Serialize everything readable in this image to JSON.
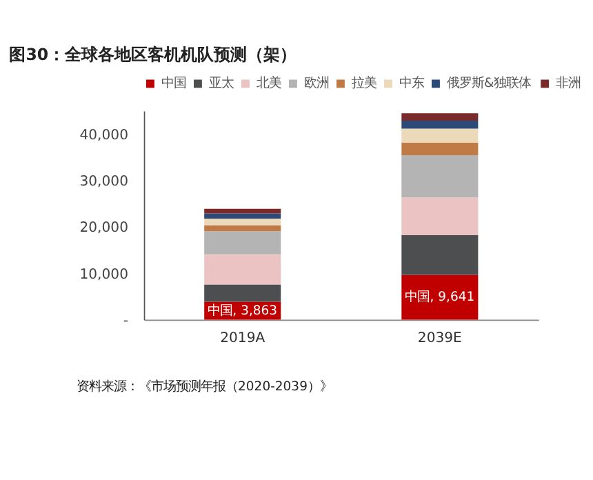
{
  "chart_data": {
    "type": "bar",
    "title": "图30：全球各地区客机机队预测（架）",
    "stacked": true,
    "categories": [
      "2019A",
      "2039E"
    ],
    "series": [
      {
        "name": "中国",
        "color": "#c00000",
        "values": [
          3863,
          9641
        ],
        "value_labels": [
          "中国, 3,863",
          "中国, 9,641"
        ]
      },
      {
        "name": "亚太",
        "color": "#4d4e50",
        "values": [
          3700,
          8600
        ]
      },
      {
        "name": "北美",
        "color": "#ebc3c3",
        "values": [
          6500,
          8100
        ]
      },
      {
        "name": "欧洲",
        "color": "#b4b4b4",
        "values": [
          5000,
          9100
        ]
      },
      {
        "name": "拉美",
        "color": "#c07a45",
        "values": [
          1300,
          2700
        ]
      },
      {
        "name": "中东",
        "color": "#ecd9b9",
        "values": [
          1400,
          3000
        ]
      },
      {
        "name": "俄罗斯&独联体",
        "color": "#2b4a78",
        "values": [
          1100,
          1700
        ]
      },
      {
        "name": "非洲",
        "color": "#7a2a2a",
        "values": [
          1000,
          1600
        ]
      }
    ],
    "ylim": [
      0,
      45000
    ],
    "yticks": [
      {
        "value": 0,
        "label": "-"
      },
      {
        "value": 10000,
        "label": "10,000"
      },
      {
        "value": 20000,
        "label": "20,000"
      },
      {
        "value": 30000,
        "label": "30,000"
      },
      {
        "value": 40000,
        "label": "40,000"
      }
    ],
    "grid": false,
    "legend": "top",
    "annotations": [
      "资料来源：《市场预测年报（2020-2039）》"
    ]
  }
}
